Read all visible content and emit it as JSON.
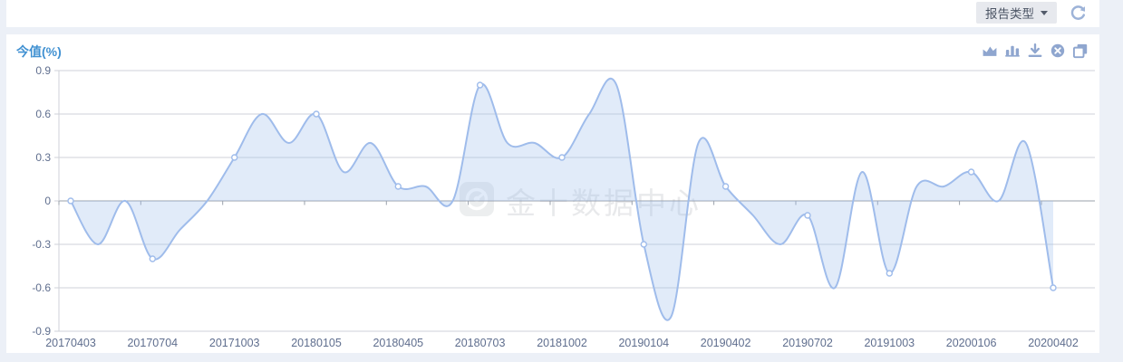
{
  "colors": {
    "page_bg": "#ecf0f7",
    "panel_bg": "#ffffff",
    "title_blue": "#4191d2",
    "button_bg": "#e7e9ee",
    "button_text": "#4d5666",
    "muted_icon": "#8fa6cf",
    "refresh_icon": "#9db3d8",
    "line": "#9fbceb",
    "area_fill": "rgba(163,192,236,0.32)",
    "grid": "#cfd2d8",
    "zero_axis": "#9aa0ab",
    "axis_label": "#5f6e8e",
    "watermark": "rgba(110,120,132,0.16)"
  },
  "toolbar": {
    "report_type": {
      "label": "报告类型",
      "caret_icon": "caret-down"
    },
    "refresh_icon": "refresh"
  },
  "panel": {
    "title": "今值(%)",
    "action_icons": [
      {
        "name": "area-chart-icon"
      },
      {
        "name": "bar-chart-icon"
      },
      {
        "name": "download-icon"
      },
      {
        "name": "close-circle-icon"
      },
      {
        "name": "copy-icon"
      }
    ],
    "watermark_text": "金十数据中心"
  },
  "chart_data": {
    "type": "area",
    "title": "今值(%)",
    "ylim": [
      -0.9,
      0.9
    ],
    "y_ticks": [
      "0.9",
      "0.6",
      "0.3",
      "0",
      "-0.3",
      "-0.6",
      "-0.9"
    ],
    "x_tick_labels": [
      "20170403",
      "20170704",
      "20171003",
      "20180105",
      "20180405",
      "20180703",
      "20181002",
      "20190104",
      "20190402",
      "20190702",
      "20191003",
      "20200106",
      "20200402"
    ],
    "points_per_label": 3,
    "marker_every": 3,
    "values": [
      0,
      -0.3,
      0,
      -0.4,
      -0.2,
      0,
      0.3,
      0.6,
      0.4,
      0.6,
      0.2,
      0.4,
      0.1,
      0.1,
      0,
      0.8,
      0.4,
      0.4,
      0.3,
      0.6,
      0.8,
      -0.3,
      -0.8,
      0.4,
      0.1,
      -0.1,
      -0.3,
      -0.1,
      -0.6,
      0.2,
      -0.5,
      0.1,
      0.1,
      0.2,
      0,
      0.4,
      -0.6
    ],
    "labeled_values": {
      "20170403": 0,
      "20170704": -0.4,
      "20171003": 0.3,
      "20180105": 0.6,
      "20180405": 0.1,
      "20180703": 0.8,
      "20181002": 0.3,
      "20190104": -0.3,
      "20190402": 0.1,
      "20190702": -0.1,
      "20191003": -0.5,
      "20200106": 0.2,
      "20200402": -0.6
    },
    "grid": true,
    "legend": false,
    "smooth": true,
    "baseline": 0
  }
}
